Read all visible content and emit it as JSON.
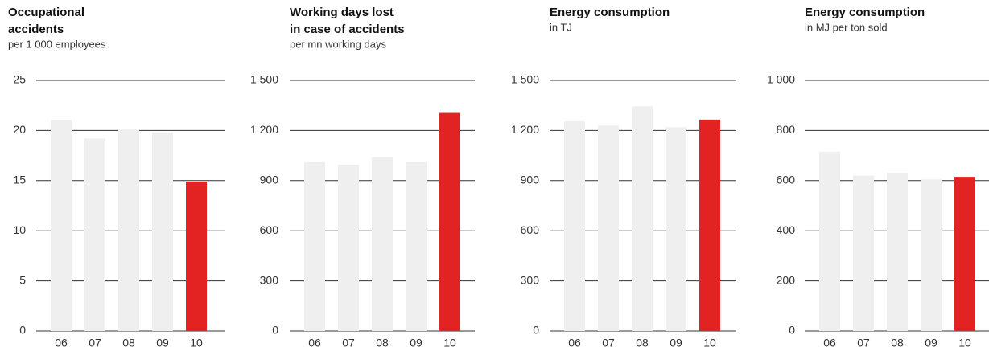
{
  "chart_data": [
    {
      "type": "bar",
      "title_lines": [
        "Occupational",
        "accidents"
      ],
      "subtitle": "per 1 000 employees",
      "categories": [
        "06",
        "07",
        "08",
        "09",
        "10"
      ],
      "values": [
        21,
        19.2,
        20.1,
        19.8,
        14.9
      ],
      "colors": [
        "#efefef",
        "#efefef",
        "#efefef",
        "#efefef",
        "#e32222"
      ],
      "ylim": [
        0,
        25
      ],
      "yticks": [
        0,
        5,
        10,
        15,
        20,
        25
      ],
      "grid": true
    },
    {
      "type": "bar",
      "title_lines": [
        "Working days lost",
        "in case of accidents"
      ],
      "subtitle": "per mn working days",
      "categories": [
        "06",
        "07",
        "08",
        "09",
        "10"
      ],
      "values": [
        1010,
        995,
        1040,
        1010,
        1305
      ],
      "colors": [
        "#efefef",
        "#efefef",
        "#efefef",
        "#efefef",
        "#e32222"
      ],
      "ylim": [
        0,
        1500
      ],
      "yticks": [
        0,
        300,
        600,
        900,
        {
          "value": 1200,
          "label": "1 200"
        },
        {
          "value": 1500,
          "label": "1 500"
        }
      ],
      "grid": true
    },
    {
      "type": "bar",
      "title_lines": [
        "Energy consumption"
      ],
      "subtitle": "in TJ",
      "categories": [
        "06",
        "07",
        "08",
        "09",
        "10"
      ],
      "values": [
        1255,
        1230,
        1345,
        1220,
        1265
      ],
      "colors": [
        "#efefef",
        "#efefef",
        "#efefef",
        "#efefef",
        "#e32222"
      ],
      "ylim": [
        0,
        1500
      ],
      "yticks": [
        0,
        300,
        600,
        900,
        {
          "value": 1200,
          "label": "1 200"
        },
        {
          "value": 1500,
          "label": "1 500"
        }
      ],
      "grid": true
    },
    {
      "type": "bar",
      "title_lines": [
        "Energy consumption"
      ],
      "subtitle": "in MJ per ton sold",
      "categories": [
        "06",
        "07",
        "08",
        "09",
        "10"
      ],
      "values": [
        715,
        620,
        630,
        605,
        615
      ],
      "colors": [
        "#efefef",
        "#efefef",
        "#efefef",
        "#efefef",
        "#e32222"
      ],
      "ylim": [
        0,
        1000
      ],
      "yticks": [
        0,
        200,
        400,
        600,
        800,
        {
          "value": 1000,
          "label": "1 000"
        }
      ],
      "grid": true
    }
  ]
}
